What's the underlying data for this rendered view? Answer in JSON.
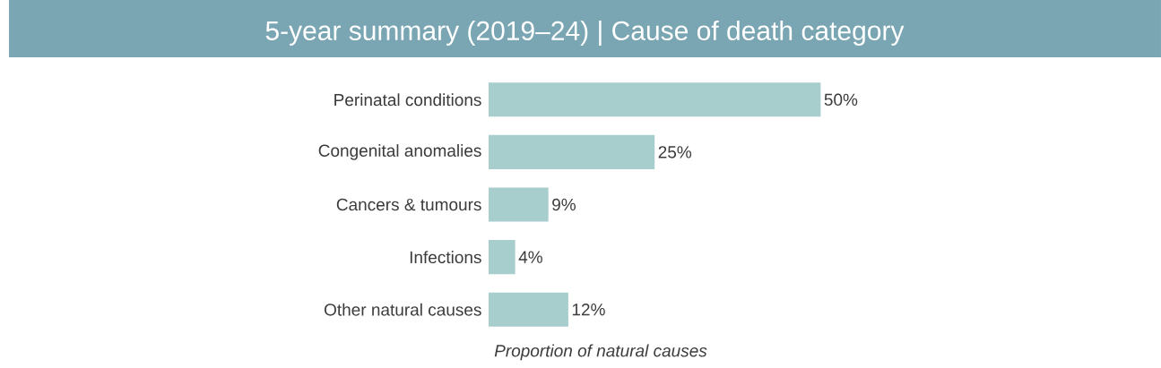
{
  "chart_data": {
    "type": "bar",
    "orientation": "horizontal",
    "title": "5-year summary (2019–24) | Cause of death category",
    "categories": [
      "Perinatal conditions",
      "Congenital anomalies",
      "Cancers & tumours",
      "Infections",
      "Other natural causes"
    ],
    "values": [
      50,
      25,
      9,
      4,
      12
    ],
    "value_labels": [
      "50%",
      "25%",
      "9%",
      "4%",
      "12%"
    ],
    "color": "#a7cdcc",
    "xlabel": "Proportion of natural causes"
  }
}
